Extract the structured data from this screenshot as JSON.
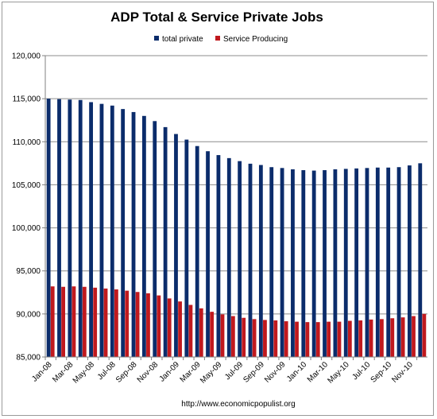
{
  "chart_data": {
    "type": "bar",
    "title": "ADP Total & Service Private Jobs",
    "xlabel": "",
    "ylabel": "",
    "ylim": [
      85000,
      120000
    ],
    "yticks": [
      85000,
      90000,
      95000,
      100000,
      105000,
      110000,
      115000,
      120000
    ],
    "ytick_labels": [
      "85,000",
      "90,000",
      "95,000",
      "100,000",
      "105,000",
      "110,000",
      "115,000",
      "120,000"
    ],
    "grid": true,
    "legend_position": "top",
    "categories": [
      "Jan-08",
      "Feb-08",
      "Mar-08",
      "Apr-08",
      "May-08",
      "Jun-08",
      "Jul-08",
      "Aug-08",
      "Sep-08",
      "Oct-08",
      "Nov-08",
      "Dec-08",
      "Jan-09",
      "Feb-09",
      "Mar-09",
      "Apr-09",
      "May-09",
      "Jun-09",
      "Jul-09",
      "Aug-09",
      "Sep-09",
      "Oct-09",
      "Nov-09",
      "Dec-09",
      "Jan-10",
      "Feb-10",
      "Mar-10",
      "Apr-10",
      "May-10",
      "Jun-10",
      "Jul-10",
      "Aug-10",
      "Sep-10",
      "Oct-10",
      "Nov-10",
      "Dec-10"
    ],
    "xtick_labels": [
      "Jan-08",
      "",
      "Mar-08",
      "",
      "May-08",
      "",
      "Jul-08",
      "",
      "Sep-08",
      "",
      "Nov-08",
      "",
      "Jan-09",
      "",
      "Mar-09",
      "",
      "May-09",
      "",
      "Jul-09",
      "",
      "Sep-09",
      "",
      "Nov-09",
      "",
      "Jan-10",
      "",
      "Mar-10",
      "",
      "May-10",
      "",
      "Jul-10",
      "",
      "Sep-10",
      "",
      "Nov-10",
      ""
    ],
    "series": [
      {
        "name": "total private",
        "color": "#0b2c6b",
        "values": [
          115000,
          114950,
          114900,
          114850,
          114600,
          114400,
          114200,
          113800,
          113450,
          113000,
          112400,
          111700,
          110900,
          110250,
          109500,
          108900,
          108450,
          108100,
          107750,
          107450,
          107300,
          107050,
          106950,
          106800,
          106700,
          106650,
          106700,
          106800,
          106850,
          106900,
          106950,
          107000,
          107000,
          107050,
          107250,
          107500
        ]
      },
      {
        "name": "Service Producing",
        "color": "#c0191e",
        "values": [
          93200,
          93150,
          93200,
          93150,
          93050,
          92950,
          92850,
          92700,
          92550,
          92400,
          92150,
          91800,
          91450,
          91050,
          90650,
          90250,
          89950,
          89750,
          89550,
          89400,
          89300,
          89250,
          89150,
          89100,
          89050,
          89050,
          89100,
          89100,
          89200,
          89250,
          89350,
          89400,
          89500,
          89600,
          89750,
          90000
        ]
      }
    ]
  },
  "footer": {
    "url": "http://www.economicpopulist.org"
  }
}
